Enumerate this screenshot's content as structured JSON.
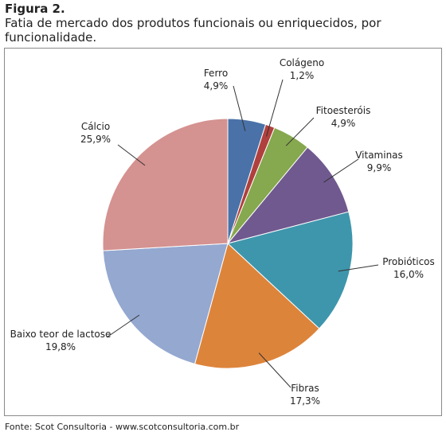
{
  "figure": {
    "label": "Figura 2.",
    "caption": "Fatia de mercado dos produtos funcionais ou enriquecidos, por funcionalidade.",
    "source": "Fonte: Scot Consultoria - www.scotconsultoria.com.br"
  },
  "chart_data": {
    "type": "pie",
    "title": "",
    "start_angle_deg": 0,
    "direction": "clockwise",
    "slices": [
      {
        "label": "Ferro",
        "value": 4.9,
        "value_label": "4,9%",
        "color": "#4a72a8"
      },
      {
        "label": "Colágeno",
        "value": 1.2,
        "value_label": "1,2%",
        "color": "#b0403d"
      },
      {
        "label": "Fitoesteróis",
        "value": 4.9,
        "value_label": "4,9%",
        "color": "#86a84e"
      },
      {
        "label": "Vitaminas",
        "value": 9.9,
        "value_label": "9,9%",
        "color": "#70598f"
      },
      {
        "label": "Probióticos",
        "value": 16.0,
        "value_label": "16,0%",
        "color": "#3e96ac"
      },
      {
        "label": "Fibras",
        "value": 17.3,
        "value_label": "17,3%",
        "color": "#dd843b"
      },
      {
        "label": "Baixo teor de lactose",
        "value": 19.8,
        "value_label": "19,8%",
        "color": "#94a8d0"
      },
      {
        "label": "Cálcio",
        "value": 25.9,
        "value_label": "25,9%",
        "color": "#d49290"
      }
    ]
  }
}
